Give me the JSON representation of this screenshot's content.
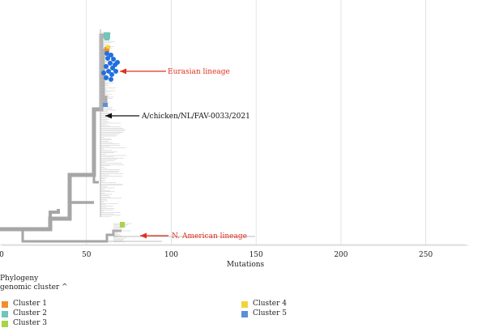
{
  "axis": {
    "label": "Mutations",
    "min": 0,
    "max": 275,
    "ticks": [
      0,
      50,
      100,
      150,
      200,
      250
    ]
  },
  "annotations": [
    {
      "label": "Eurasian lineage",
      "color": "#e0301e"
    },
    {
      "label": "A/chicken/NL/FAV-0033/2021",
      "color": "#111111"
    },
    {
      "label": "N. American lineage",
      "color": "#e0301e"
    }
  ],
  "legend": {
    "title_line1": "Phylogeny",
    "title_line2": "genomic cluster ^",
    "items": [
      {
        "label": "Cluster 1",
        "color": "#f28e2b"
      },
      {
        "label": "Cluster 2",
        "color": "#6fc7b7"
      },
      {
        "label": "Cluster 3",
        "color": "#a8d44a"
      },
      {
        "label": "Cluster 4",
        "color": "#f2d43a"
      },
      {
        "label": "Cluster 5",
        "color": "#5a8fd6"
      }
    ]
  },
  "colors": {
    "branch": "#a6a6a6",
    "grid": "#dcdcdc",
    "eurasian_tips": "#1f6fe0"
  }
}
